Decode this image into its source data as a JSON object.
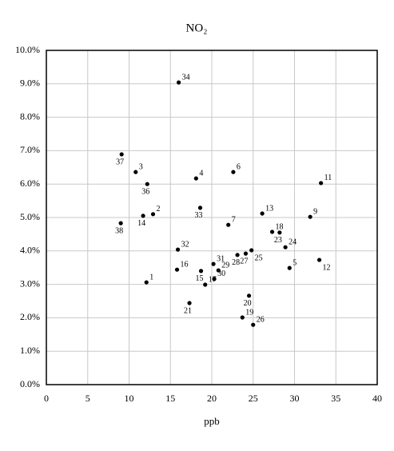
{
  "chart_data": {
    "type": "scatter",
    "title": "NO₂",
    "xlabel": "ppb",
    "xlim": [
      0,
      40
    ],
    "xticks": [
      0,
      5,
      10,
      15,
      20,
      25,
      30,
      35,
      40
    ],
    "ylim": [
      0,
      10
    ],
    "yticks": [
      {
        "value": 0,
        "label": "0.0%"
      },
      {
        "value": 1,
        "label": "1.0%"
      },
      {
        "value": 2,
        "label": "2.0%"
      },
      {
        "value": 3,
        "label": "3.0%"
      },
      {
        "value": 4,
        "label": "4.0%"
      },
      {
        "value": 5,
        "label": "5.0%"
      },
      {
        "value": 6,
        "label": "6.0%"
      },
      {
        "value": 7,
        "label": "7.0%"
      },
      {
        "value": 8,
        "label": "8.0%"
      },
      {
        "value": 9,
        "label": "9.0%"
      },
      {
        "value": 10,
        "label": "10.0%"
      }
    ],
    "grid": true,
    "color": "#000000",
    "labels": [
      "1",
      "2",
      "3",
      "4",
      "5",
      "6",
      "7",
      "9",
      "11",
      "12",
      "13",
      "14",
      "15",
      "16",
      "17",
      "18",
      "19",
      "20",
      "21",
      "23",
      "24",
      "25",
      "26",
      "27",
      "28",
      "29",
      "30",
      "31",
      "32",
      "33",
      "34",
      "36",
      "37",
      "38"
    ],
    "x": [
      12.1,
      12.9,
      10.8,
      18.1,
      29.4,
      22.6,
      22.0,
      31.9,
      33.2,
      33.0,
      26.1,
      11.7,
      18.7,
      15.8,
      19.2,
      27.3,
      23.7,
      24.5,
      17.3,
      28.2,
      28.9,
      24.8,
      25.0,
      24.1,
      23.1,
      20.8,
      20.3,
      20.2,
      15.9,
      18.6,
      16.0,
      12.2,
      9.1,
      9.0
    ],
    "values": [
      3.06,
      5.1,
      6.36,
      6.17,
      3.49,
      6.36,
      4.78,
      5.02,
      6.03,
      3.73,
      5.12,
      5.05,
      3.4,
      3.44,
      2.99,
      4.57,
      2.01,
      2.66,
      2.44,
      4.55,
      4.11,
      4.02,
      1.79,
      3.92,
      3.88,
      3.42,
      3.16,
      3.61,
      4.04,
      5.29,
      9.04,
      6.0,
      6.89,
      4.83
    ]
  }
}
